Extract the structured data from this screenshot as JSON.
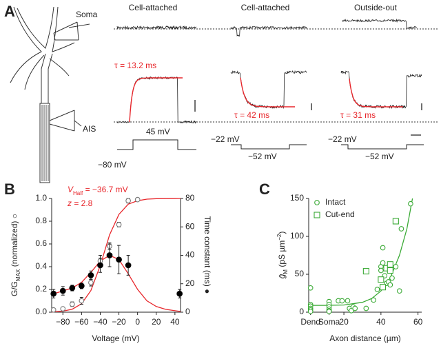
{
  "panel_a": {
    "label": "A",
    "soma": "Soma",
    "ais": "AIS",
    "columns": [
      {
        "title": "Cell-attached",
        "tau": "τ = 13.2 ms",
        "step_high": "45 mV",
        "step_low": "−80 mV"
      },
      {
        "title": "Cell-attached",
        "tau": "τ = 42 ms",
        "step_high": "−22 mV",
        "step_low": "−52 mV"
      },
      {
        "title": "Outside-out",
        "tau": "τ = 31 ms",
        "step_high": "−22 mV",
        "step_low": "−52 mV"
      }
    ]
  },
  "chart_data": [
    {
      "panel_label": "B",
      "type": "scatter",
      "xlabel": "Voltage (mV)",
      "ylabel": {
        "main": "G/G",
        "sub": "MAX",
        "rest": " (normalized) ○"
      },
      "y2label": "Time constant (ms) ●",
      "annotations": {
        "vhalf_symbol": "V",
        "vhalf_sub": "Half",
        "vhalf_text": " = −36.7 mV",
        "z_symbol": "z",
        "z_text": " = 2.8"
      },
      "xlim": [
        -92,
        46
      ],
      "xticks": [
        {
          "value": -80,
          "label": "−80"
        },
        {
          "value": -60,
          "label": "−60"
        },
        {
          "value": -40,
          "label": "−40"
        },
        {
          "value": -20,
          "label": "−20"
        },
        0,
        20,
        40
      ],
      "ylim": [
        0,
        1
      ],
      "yticks": [
        {
          "value": 0,
          "label": "0.0"
        },
        {
          "value": 0.2,
          "label": "0.2"
        },
        {
          "value": 0.4,
          "label": "0.4"
        },
        {
          "value": 0.6,
          "label": "0.6"
        },
        {
          "value": 0.8,
          "label": "0.8"
        },
        {
          "value": 1,
          "label": "1.0"
        }
      ],
      "y2lim": [
        0,
        80
      ],
      "y2ticks": [
        0,
        20,
        40,
        60,
        80
      ],
      "series": [
        {
          "type": "line",
          "color": "#e8262b",
          "x": [
            -92,
            -90,
            -80,
            -70,
            -60,
            -50,
            -40,
            -30,
            -20,
            -10,
            0,
            10,
            20,
            30,
            46
          ],
          "values": [
            0.002,
            0.003,
            0.009,
            0.026,
            0.074,
            0.19,
            0.41,
            0.68,
            0.86,
            0.95,
            0.98,
            0.994,
            0.998,
            0.999,
            1
          ]
        },
        {
          "type": "line",
          "axis": "y2",
          "color": "#e8262b",
          "x": [
            -92,
            -80,
            -70,
            -60,
            -50,
            -40,
            -30,
            -20,
            -10,
            0,
            10,
            20,
            30,
            46
          ],
          "values": [
            12.5,
            15,
            17,
            21,
            28,
            36,
            40,
            37,
            27,
            16,
            8,
            4,
            2,
            0.5
          ]
        },
        {
          "type": "scatter",
          "marker": "open-circle",
          "color": "#777777",
          "x": [
            -90,
            -80,
            -70,
            -60,
            -50,
            -40,
            -30,
            -20,
            -10,
            0
          ],
          "values": [
            0.02,
            0.03,
            0.07,
            0.1,
            0.26,
            0.45,
            0.58,
            0.77,
            0.98,
            0.99
          ],
          "errors": [
            0,
            0,
            0.02,
            0.03,
            0.03,
            0.05,
            0.03,
            0.02,
            0.02,
            0
          ]
        },
        {
          "type": "scatter",
          "marker": "filled-circle",
          "axis": "y2",
          "color": "#000000",
          "x": [
            -90,
            -80,
            -70,
            -60,
            -50,
            -40,
            -30,
            -20,
            -10,
            45
          ],
          "values": [
            13,
            15,
            17,
            18.5,
            26,
            33,
            40,
            37,
            33,
            13
          ],
          "errors": [
            3,
            3,
            2,
            2,
            3,
            5,
            8,
            10,
            7,
            3
          ]
        }
      ]
    },
    {
      "panel_label": "C",
      "type": "scatter",
      "xlabel": "Axon distance (µm)",
      "ylabel": {
        "main": "ḡ",
        "sub": "M",
        "rest": " (pS µm",
        "sup": "−2",
        "end": ")"
      },
      "xlim": [
        1,
        62
      ],
      "xticks": [
        {
          "value": 2,
          "label": "Dend"
        },
        {
          "value": 12,
          "label": "Soma"
        },
        20,
        40,
        60
      ],
      "ylim": [
        0,
        150
      ],
      "yticks": [
        0,
        50,
        100,
        150
      ],
      "legend": "upper left",
      "series": [
        {
          "type": "line",
          "color": "#3aaa35",
          "x": [
            2,
            10,
            20,
            30,
            35,
            40,
            45,
            50,
            54,
            57
          ],
          "values": [
            9,
            9,
            9.5,
            13,
            18,
            28,
            45,
            75,
            110,
            150
          ]
        },
        {
          "name": "Intact",
          "type": "scatter",
          "marker": "open-circle",
          "color": "#3aaa35",
          "x": [
            2,
            2,
            2,
            2,
            2,
            2,
            12,
            12,
            12,
            12,
            12,
            12,
            17,
            19,
            22,
            23,
            24,
            25,
            26,
            32,
            36,
            38,
            40,
            40,
            41,
            41,
            42,
            43,
            44,
            45,
            46,
            48,
            50,
            51,
            56
          ],
          "values": [
            32,
            10,
            8,
            5,
            3,
            1,
            14,
            10,
            7,
            4,
            2,
            1,
            15,
            15,
            15,
            5,
            2,
            7,
            5,
            5,
            16,
            30,
            60,
            55,
            65,
            85,
            48,
            38,
            40,
            36,
            45,
            60,
            28,
            110,
            143
          ]
        },
        {
          "name": "Cut-end",
          "type": "scatter",
          "marker": "open-square",
          "color": "#3aaa35",
          "x": [
            32,
            40,
            41,
            43,
            45,
            45,
            48
          ],
          "values": [
            54,
            43,
            33,
            58,
            55,
            63,
            120
          ]
        }
      ]
    }
  ]
}
